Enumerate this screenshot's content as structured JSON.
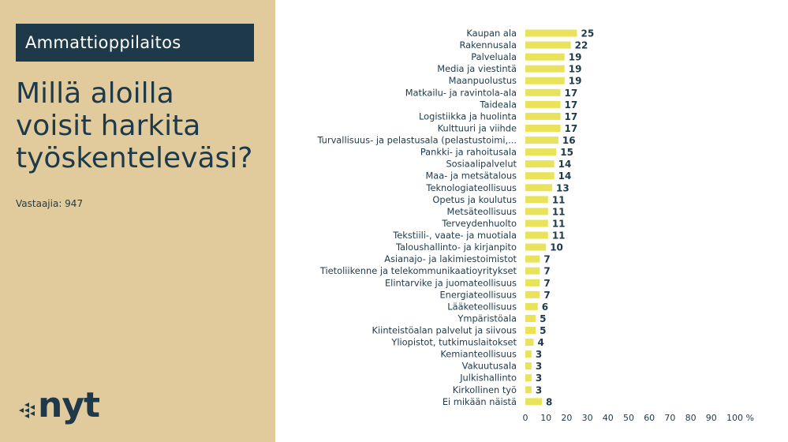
{
  "header": {
    "badge_label": "Ammattioppilaitos",
    "title_lines": [
      "Millä aloilla",
      "voisit harkita",
      "työskentelеväsi?"
    ],
    "respondents": "Vastaajia: 947"
  },
  "logo": {
    "text": "nyt"
  },
  "colors": {
    "panel": "#e1cb9c",
    "badge": "#1e3a4a",
    "bar": "#e8e35a",
    "text": "#1e3a4a"
  },
  "chart_data": {
    "type": "bar",
    "orientation": "horizontal",
    "categories": [
      "Kaupan ala",
      "Rakennusala",
      "Palveluala",
      "Media ja viestintä",
      "Maanpuolustus",
      "Matkailu- ja ravintola-ala",
      "Taideala",
      "Logistiikka ja huolinta",
      "Kulttuuri ja viihde",
      "Turvallisuus- ja pelastusala (pelastustoimi,...",
      "Pankki- ja rahoitusala",
      "Sosiaalipalvelut",
      "Maa- ja metsätalous",
      "Teknologiateollisuus",
      "Opetus ja koulutus",
      "Metsäteollisuus",
      "Terveydenhuolto",
      "Tekstiili-, vaate- ja muotiala",
      "Taloushallinto- ja kirjanpito",
      "Asianajo- ja lakimiestoimistot",
      "Tietoliikenne ja telekommunikaatioyritykset",
      "Elintarvike ja juomateollisuus",
      "Energiateollisuus",
      "Lääketeollisuus",
      "Ympäristöala",
      "Kiinteistöalan palvelut ja siivous",
      "Yliopistot, tutkimuslaitokset",
      "Kemianteollisuus",
      "Vakuutusala",
      "Julkishallinto",
      "Kirkollinen työ",
      "Ei mikään näistä"
    ],
    "values": [
      25,
      22,
      19,
      19,
      19,
      17,
      17,
      17,
      17,
      16,
      15,
      14,
      14,
      13,
      11,
      11,
      11,
      11,
      10,
      7,
      7,
      7,
      7,
      6,
      5,
      5,
      4,
      3,
      3,
      3,
      3,
      8
    ],
    "xlim": [
      0,
      100
    ],
    "ticks": [
      "0",
      "10",
      "20",
      "30",
      "40",
      "50",
      "60",
      "70",
      "80",
      "90",
      "100 %"
    ],
    "grid": false
  }
}
